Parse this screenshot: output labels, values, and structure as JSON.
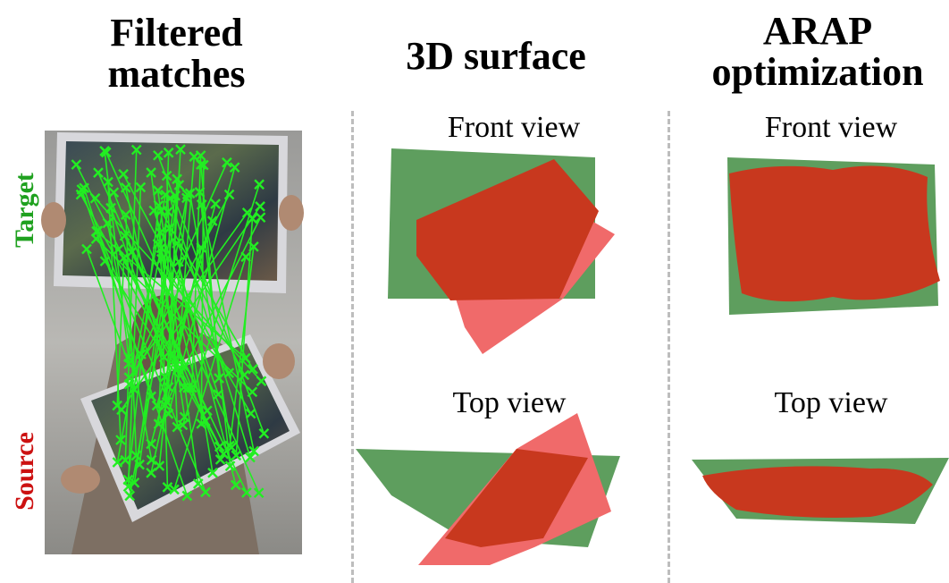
{
  "columns": {
    "filtered_matches": {
      "line1": "Filtered",
      "line2": "matches"
    },
    "surface_3d": {
      "title": "3D surface"
    },
    "arap": {
      "line1": "ARAP",
      "line2": "optimization"
    }
  },
  "side_labels": {
    "target": "Target",
    "source": "Source"
  },
  "views": {
    "front": "Front view",
    "top": "Top view"
  },
  "colors": {
    "target_green": "#1fa11f",
    "source_red": "#cc1111",
    "match_green": "#22ee22",
    "surface_green": "#5e9e5e",
    "surface_red": "#c8381e",
    "surface_pink": "#f06a6a"
  }
}
